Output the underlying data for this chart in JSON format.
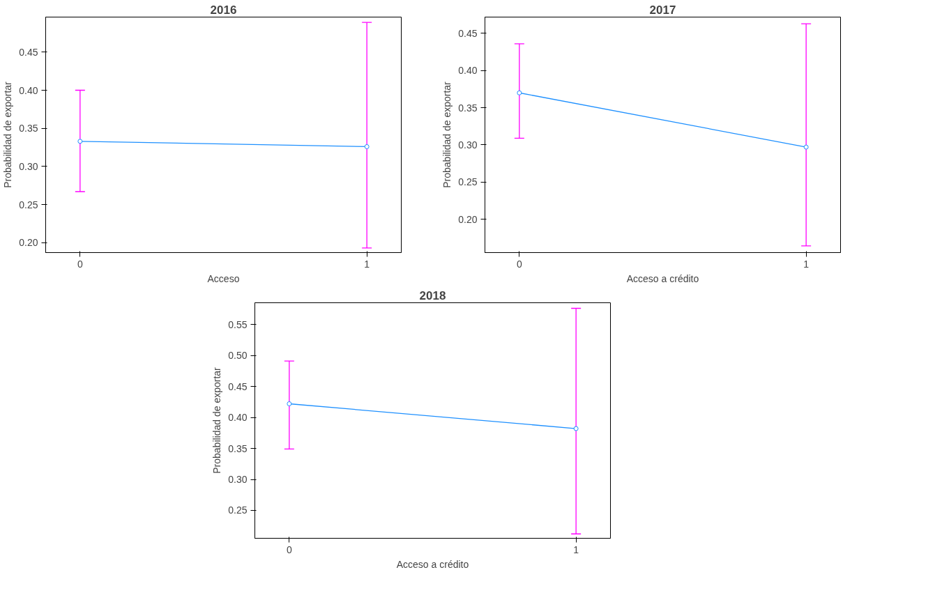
{
  "chart_data": [
    {
      "type": "line",
      "title": "2016",
      "xlabel": "Acceso",
      "ylabel": "Probabilidad de exportar",
      "categories": [
        "0",
        "1"
      ],
      "series": [
        {
          "color": "#1e90ff",
          "values": [
            0.333,
            0.326
          ],
          "errors": [
            [
              0.267,
              0.4
            ],
            [
              0.193,
              0.489
            ]
          ]
        }
      ],
      "ylim": [
        0.187,
        0.496
      ],
      "yticks": [
        {
          "value": 0.2,
          "label": "0.20"
        },
        0.25,
        {
          "value": 0.3,
          "label": "0.30"
        },
        0.35,
        {
          "value": 0.4,
          "label": "0.40"
        },
        0.45
      ],
      "marker": "circle",
      "grid": false
    },
    {
      "type": "line",
      "title": "2017",
      "xlabel": "Acceso a crédito",
      "ylabel": "Probabilidad de exportar",
      "categories": [
        "0",
        "1"
      ],
      "series": [
        {
          "color": "#1e90ff",
          "values": [
            0.37,
            0.297
          ],
          "errors": [
            [
              0.309,
              0.436
            ],
            [
              0.164,
              0.463
            ]
          ]
        }
      ],
      "ylim": [
        0.155,
        0.472
      ],
      "yticks": [
        {
          "value": 0.2,
          "label": "0.20"
        },
        0.25,
        {
          "value": 0.3,
          "label": "0.30"
        },
        0.35,
        {
          "value": 0.4,
          "label": "0.40"
        },
        0.45
      ],
      "marker": "circle",
      "grid": false
    },
    {
      "type": "line",
      "title": "2018",
      "xlabel": "Acceso a crédito",
      "ylabel": "Probabilidad de exportar",
      "categories": [
        "0",
        "1"
      ],
      "series": [
        {
          "color": "#1e90ff",
          "values": [
            0.422,
            0.382
          ],
          "errors": [
            [
              0.349,
              0.491
            ],
            [
              0.212,
              0.576
            ]
          ]
        }
      ],
      "ylim": [
        0.205,
        0.585
      ],
      "yticks": [
        0.25,
        {
          "value": 0.3,
          "label": "0.30"
        },
        0.35,
        {
          "value": 0.4,
          "label": "0.40"
        },
        0.45,
        {
          "value": 0.5,
          "label": "0.50"
        },
        0.55
      ],
      "marker": "circle",
      "grid": false
    }
  ]
}
